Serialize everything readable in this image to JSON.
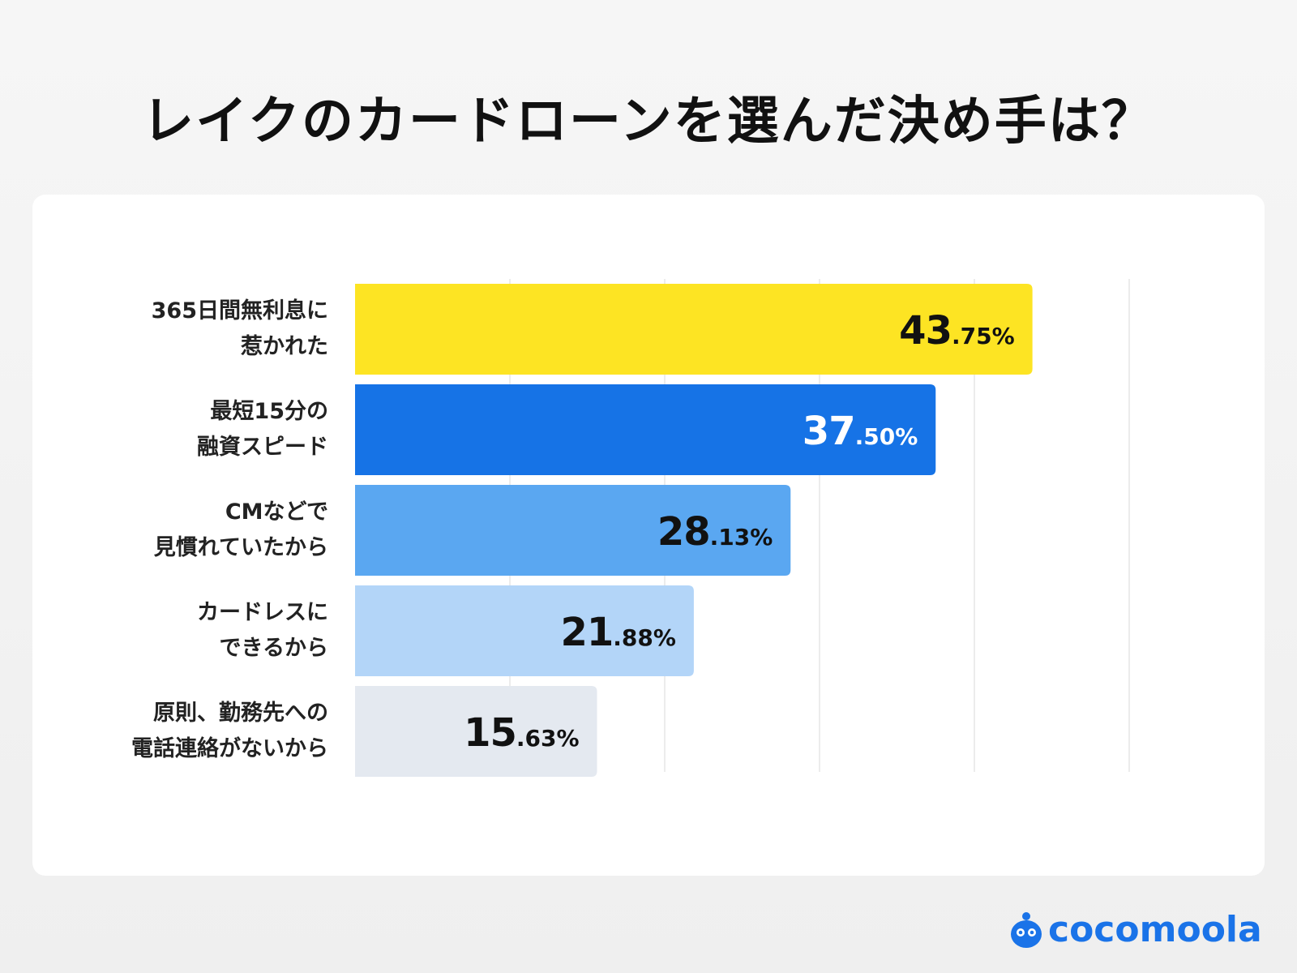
{
  "title": "レイクのカードローンを選んだ決め手は？",
  "brand": {
    "name": "cocomoola",
    "color": "#1a73e8"
  },
  "chart_data": {
    "type": "bar",
    "orientation": "horizontal",
    "title": "レイクのカードローンを選んだ決め手は？",
    "categories": [
      [
        "365日間無利息に",
        "惹かれた"
      ],
      [
        "最短15分の",
        "融資スピード"
      ],
      [
        "CMなどで",
        "見慣れていたから"
      ],
      [
        "カードレスに",
        "できるから"
      ],
      [
        "原則、勤務先への",
        "電話連絡がないから"
      ]
    ],
    "values": [
      43.75,
      37.5,
      28.13,
      21.88,
      15.63
    ],
    "value_labels": [
      {
        "int": "43",
        "dec": ".75%"
      },
      {
        "int": "37",
        "dec": ".50%"
      },
      {
        "int": "28",
        "dec": ".13%"
      },
      {
        "int": "21",
        "dec": ".88%"
      },
      {
        "int": "15",
        "dec": ".63%"
      }
    ],
    "bar_colors": [
      "#fde423",
      "#1673e6",
      "#5aa7f1",
      "#b3d5f8",
      "#e4e9f0"
    ],
    "label_colors": [
      "#111111",
      "#ffffff",
      "#111111",
      "#111111",
      "#111111"
    ],
    "xlim": [
      0,
      50
    ],
    "gridlines": [
      10,
      20,
      30,
      40,
      50
    ],
    "grid_color": "#e6e6e6"
  }
}
